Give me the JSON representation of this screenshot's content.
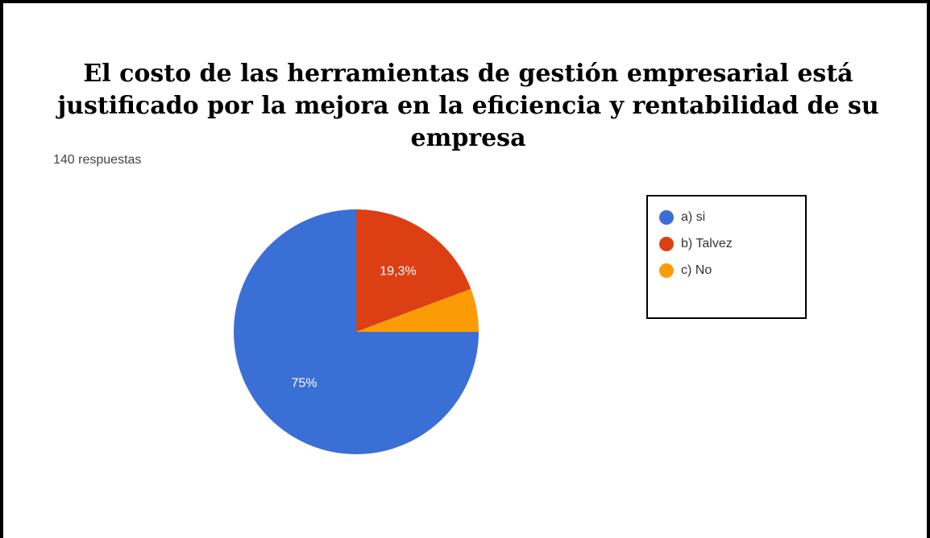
{
  "chart_data": {
    "type": "pie",
    "title": "El costo de las herramientas de gestión empresarial está justificado por la mejora en la eficiencia y rentabilidad de su empresa",
    "subtitle": "140 respuestas",
    "categories": [
      "a) si",
      "b) Talvez",
      "c) No"
    ],
    "values": [
      75,
      19.3,
      5.7
    ],
    "value_labels": [
      "75%",
      "19,3%",
      null
    ],
    "colors": [
      "#3a6fd6",
      "#dc3f14",
      "#fb9c07"
    ],
    "legend": "right"
  }
}
